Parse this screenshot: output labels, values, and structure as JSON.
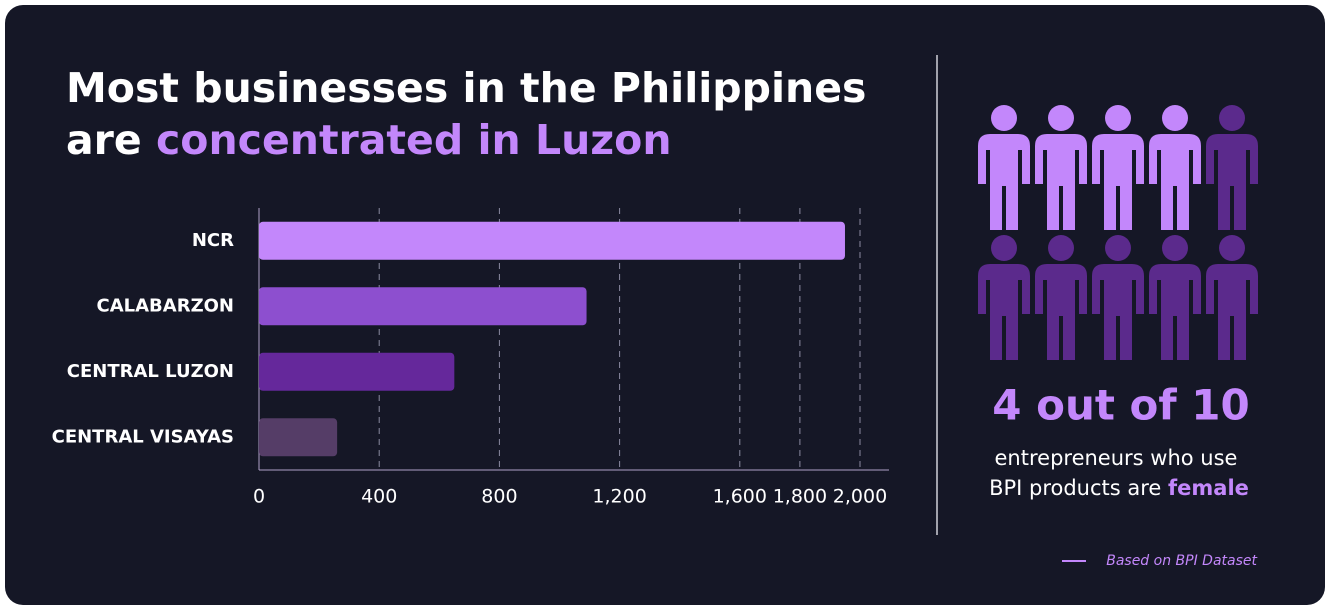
{
  "header": {
    "title_line1": "Most businesses in the Philippines",
    "title_line2_plain": "are",
    "title_line2_highlight": "concentrated in Luzon"
  },
  "chart_data": {
    "type": "bar",
    "orientation": "horizontal",
    "categories": [
      "NCR",
      "CALABARZON",
      "CENTRAL LUZON",
      "CENTRAL VISAYAS"
    ],
    "values": [
      1950,
      1090,
      650,
      260
    ],
    "colors": [
      "#c387fb",
      "#8d4fcf",
      "#65289b",
      "#553d67"
    ],
    "xlim": [
      0,
      2000
    ],
    "xticks": [
      0,
      400,
      800,
      {
        "value": 1200,
        "label": "1,200"
      },
      {
        "value": 1600,
        "label": "1,600"
      },
      {
        "value": 1800,
        "label": "1,800"
      },
      {
        "value": 2000,
        "label": "2,000"
      }
    ],
    "grid": true
  },
  "stat": {
    "headline": "4 out of 10",
    "text_line1": "entrepreneurs who use",
    "text_line2_plain": "BPI products are",
    "text_line2_highlight": "female",
    "pictogram": {
      "filled": 4,
      "total": 10,
      "filled_color": "#c387fb",
      "empty_color": "#5b2a8c"
    }
  },
  "footnote": "Based on BPI Dataset"
}
